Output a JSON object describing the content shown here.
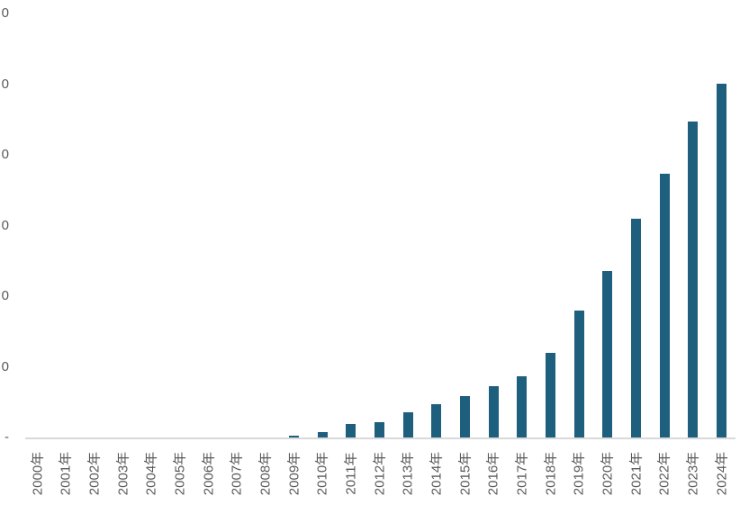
{
  "chart_data": {
    "type": "bar",
    "title": "",
    "xlabel": "",
    "ylabel": "",
    "categories": [
      "2000年",
      "2001年",
      "2002年",
      "2003年",
      "2004年",
      "2005年",
      "2006年",
      "2007年",
      "2008年",
      "2009年",
      "2010年",
      "2011年",
      "2012年",
      "2013年",
      "2014年",
      "2015年",
      "2016年",
      "2017年",
      "2018年",
      "2019年",
      "2020年",
      "2021年",
      "2022年",
      "2023年",
      "2024年"
    ],
    "values": [
      0,
      0,
      0,
      0,
      0,
      0,
      0,
      0,
      0,
      0.03,
      0.08,
      0.19,
      0.22,
      0.36,
      0.47,
      0.59,
      0.72,
      0.87,
      1.2,
      1.8,
      2.36,
      3.09,
      3.73,
      4.47,
      5.0
    ],
    "ylim": [
      0,
      6
    ],
    "value_unit_note": "values expressed in y-axis gridline units; y tick labels are clipped by the left image edge so only the trailing digit is visible, and zero is shown as a dash",
    "y_tick_labels_top_to_bottom": [
      "0",
      "0",
      "0",
      "0",
      "0",
      "0",
      "-"
    ],
    "grid": false,
    "legend": false,
    "bar_color": "#1e5f7e",
    "axis_line_color": "#d9d9d9",
    "label_color": "#595959",
    "background_color": "#ffffff"
  }
}
